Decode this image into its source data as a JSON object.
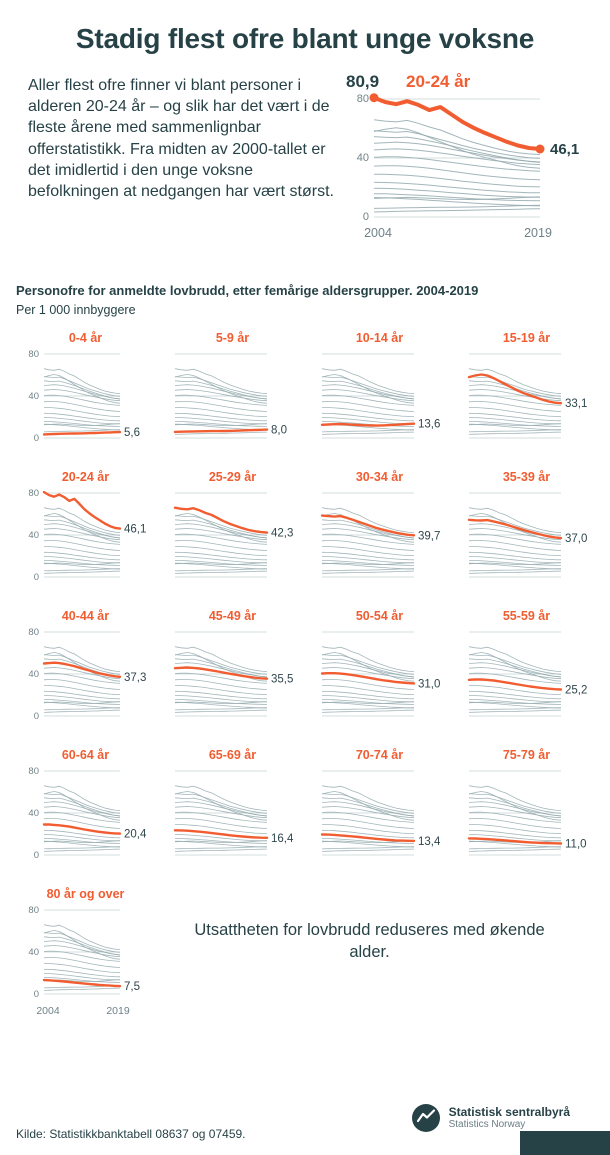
{
  "header": {
    "title": "Stadig flest ofre blant unge voksne"
  },
  "intro": {
    "text": "Aller flest ofre finner vi blant personer i alderen 20-24 år – og slik har det vært i de fleste årene med sammenlignbar offerstatistikk. Fra midten av 2000-tallet er det imidlertid i den unge voksne befolkningen at nedgangen har vært størst."
  },
  "subtitle": {
    "bold": "Personofre for anmeldte lovbrudd, etter femårige aldersgrupper. 2004-2019",
    "unit": "Per 1 000 innbyggere"
  },
  "message": {
    "text": "Utsattheten for lovbrudd reduseres med økende alder."
  },
  "footer": {
    "source": "Kilde: Statistikkbanktabell 08637 og 07459.",
    "logo_name": "Statistisk sentralbyrå",
    "logo_sub": "Statistics Norway"
  },
  "colors": {
    "accent": "#f15d31",
    "dark": "#274247",
    "thin_line": "#93a9ae",
    "grid": "#d3dcde",
    "tick": "#6f8288",
    "value_label": "#2f464c"
  },
  "chart_data": {
    "type": "line",
    "title": "Personofre for anmeldte lovbrudd, etter femårige aldersgrupper. 2004-2019",
    "unit": "Per 1 000 innbyggere",
    "x": [
      2004,
      2005,
      2006,
      2007,
      2008,
      2009,
      2010,
      2011,
      2012,
      2013,
      2014,
      2015,
      2016,
      2017,
      2018,
      2019
    ],
    "x_axis_labels": [
      "2004",
      "2019"
    ],
    "ylim": [
      0,
      80
    ],
    "yticks": [
      0,
      40,
      80
    ],
    "grid": true,
    "legend_position": "none",
    "highlight": {
      "name": "20-24 år",
      "start_label": "80,9",
      "end_label": "46,1"
    },
    "series": [
      {
        "name": "0-4 år",
        "end_label": "5,6",
        "values": [
          3.4,
          3.6,
          3.8,
          4.0,
          4.1,
          4.2,
          4.3,
          4.4,
          4.5,
          4.7,
          4.8,
          5.0,
          5.1,
          5.3,
          5.5,
          5.6
        ]
      },
      {
        "name": "5-9 år",
        "end_label": "8,0",
        "values": [
          5.8,
          6.0,
          6.1,
          6.3,
          6.4,
          6.5,
          6.6,
          6.6,
          6.7,
          6.8,
          7.0,
          7.2,
          7.4,
          7.6,
          7.8,
          8.0
        ]
      },
      {
        "name": "10-14 år",
        "end_label": "13,6",
        "values": [
          12.6,
          12.9,
          13.1,
          13.3,
          13.0,
          12.7,
          12.4,
          12.1,
          11.9,
          11.8,
          12.0,
          12.3,
          12.6,
          13.0,
          13.4,
          13.6
        ]
      },
      {
        "name": "15-19 år",
        "end_label": "33,1",
        "values": [
          58.0,
          59.5,
          60.5,
          59.5,
          57.0,
          54.0,
          51.0,
          48.0,
          45.0,
          42.5,
          40.5,
          38.5,
          36.5,
          34.8,
          33.6,
          33.1
        ]
      },
      {
        "name": "20-24 år",
        "end_label": "46,1",
        "values": [
          80.9,
          78.0,
          76.5,
          78.5,
          76.0,
          72.5,
          74.5,
          69.5,
          64.5,
          60.5,
          57.0,
          54.0,
          51.0,
          48.5,
          46.8,
          46.1
        ]
      },
      {
        "name": "25-29 år",
        "end_label": "42,3",
        "values": [
          66.0,
          65.0,
          64.5,
          65.5,
          63.5,
          61.0,
          59.0,
          56.0,
          53.0,
          50.5,
          48.5,
          46.5,
          44.8,
          43.6,
          42.8,
          42.3
        ]
      },
      {
        "name": "30-34 år",
        "end_label": "39,7",
        "values": [
          58.5,
          58.0,
          57.5,
          58.0,
          56.5,
          54.5,
          52.5,
          50.5,
          48.5,
          46.5,
          45.0,
          43.5,
          42.2,
          41.1,
          40.2,
          39.7
        ]
      },
      {
        "name": "35-39 år",
        "end_label": "37,0",
        "values": [
          54.5,
          54.0,
          53.8,
          54.2,
          53.0,
          51.5,
          50.0,
          48.2,
          46.4,
          44.6,
          43.0,
          41.4,
          40.0,
          38.7,
          37.7,
          37.0
        ]
      },
      {
        "name": "40-44 år",
        "end_label": "37,3",
        "values": [
          50.0,
          50.4,
          50.8,
          50.4,
          49.6,
          48.6,
          47.4,
          46.0,
          44.6,
          43.2,
          41.8,
          40.6,
          39.6,
          38.6,
          37.8,
          37.3
        ]
      },
      {
        "name": "45-49 år",
        "end_label": "35,5",
        "values": [
          45.5,
          45.9,
          46.2,
          45.8,
          45.2,
          44.4,
          43.4,
          42.4,
          41.2,
          40.2,
          39.2,
          38.2,
          37.3,
          36.5,
          35.9,
          35.5
        ]
      },
      {
        "name": "50-54 år",
        "end_label": "31,0",
        "values": [
          40.5,
          40.8,
          40.8,
          40.4,
          39.8,
          39.0,
          38.0,
          37.0,
          36.0,
          35.0,
          34.0,
          33.2,
          32.5,
          31.9,
          31.4,
          31.0
        ]
      },
      {
        "name": "55-59 år",
        "end_label": "25,2",
        "values": [
          34.5,
          34.8,
          34.8,
          34.4,
          33.8,
          33.0,
          32.0,
          31.0,
          30.0,
          29.0,
          28.1,
          27.3,
          26.6,
          26.0,
          25.5,
          25.2
        ]
      },
      {
        "name": "60-64 år",
        "end_label": "20,4",
        "values": [
          29.0,
          29.0,
          28.7,
          28.3,
          27.7,
          27.0,
          26.1,
          25.2,
          24.3,
          23.5,
          22.7,
          22.0,
          21.4,
          20.9,
          20.6,
          20.4
        ]
      },
      {
        "name": "65-69 år",
        "end_label": "16,4",
        "values": [
          23.5,
          23.4,
          23.1,
          22.7,
          22.2,
          21.6,
          20.9,
          20.2,
          19.5,
          18.8,
          18.2,
          17.6,
          17.1,
          16.8,
          16.5,
          16.4
        ]
      },
      {
        "name": "70-74 år",
        "end_label": "13,4",
        "values": [
          19.5,
          19.4,
          19.1,
          18.7,
          18.2,
          17.7,
          17.1,
          16.5,
          15.9,
          15.3,
          14.8,
          14.3,
          13.9,
          13.7,
          13.5,
          13.4
        ]
      },
      {
        "name": "75-79 år",
        "end_label": "11,0",
        "values": [
          15.8,
          15.7,
          15.4,
          15.1,
          14.7,
          14.3,
          13.8,
          13.3,
          12.9,
          12.4,
          12.0,
          11.7,
          11.4,
          11.2,
          11.1,
          11.0
        ]
      },
      {
        "name": "80 år og over",
        "end_label": "7,5",
        "values": [
          13.2,
          13.0,
          12.7,
          12.3,
          11.9,
          11.4,
          10.9,
          10.4,
          9.9,
          9.4,
          9.0,
          8.6,
          8.3,
          8.0,
          7.7,
          7.5
        ]
      }
    ]
  }
}
